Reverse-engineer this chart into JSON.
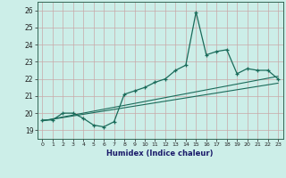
{
  "xlabel": "Humidex (Indice chaleur)",
  "xlim": [
    -0.5,
    23.5
  ],
  "ylim": [
    18.5,
    26.5
  ],
  "yticks": [
    19,
    20,
    21,
    22,
    23,
    24,
    25,
    26
  ],
  "xticks": [
    0,
    1,
    2,
    3,
    4,
    5,
    6,
    7,
    8,
    9,
    10,
    11,
    12,
    13,
    14,
    15,
    16,
    17,
    18,
    19,
    20,
    21,
    22,
    23
  ],
  "bg_color": "#cceee8",
  "grid_color": "#c8a8a8",
  "line_color": "#1a6b5a",
  "main_data_x": [
    0,
    1,
    2,
    3,
    4,
    5,
    6,
    7,
    8,
    9,
    10,
    11,
    12,
    13,
    14,
    15,
    16,
    17,
    18,
    19,
    20,
    21,
    22,
    23
  ],
  "main_data_y": [
    19.6,
    19.6,
    20.0,
    20.0,
    19.7,
    19.3,
    19.2,
    19.5,
    21.1,
    21.3,
    21.5,
    21.8,
    22.0,
    22.5,
    22.8,
    25.9,
    23.4,
    23.6,
    23.7,
    22.3,
    22.6,
    22.5,
    22.5,
    22.0
  ],
  "line2_x": [
    0,
    23
  ],
  "line2_y": [
    19.55,
    22.15
  ],
  "line3_x": [
    0,
    23
  ],
  "line3_y": [
    19.55,
    21.75
  ]
}
